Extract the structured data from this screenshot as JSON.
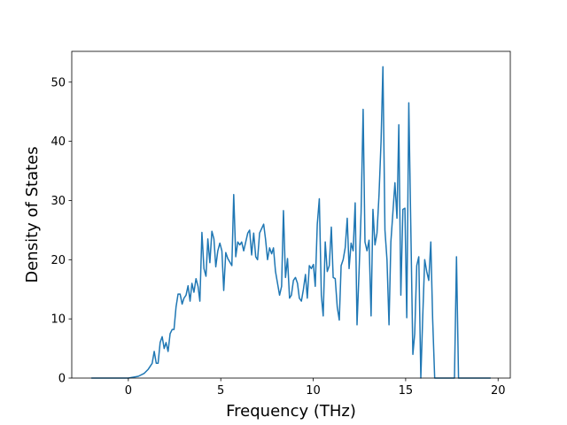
{
  "chart_data": {
    "type": "line",
    "x_label": "Frequency (THz)",
    "y_label": "Density of States",
    "x": [
      -2.0,
      0,
      0.54,
      0.86,
      1.08,
      1.29,
      1.4,
      1.51,
      1.61,
      1.72,
      1.83,
      1.94,
      2.04,
      2.15,
      2.26,
      2.37,
      2.47,
      2.58,
      2.69,
      2.8,
      2.91,
      3.01,
      3.12,
      3.23,
      3.34,
      3.44,
      3.55,
      3.66,
      3.77,
      3.87,
      3.98,
      4.09,
      4.2,
      4.3,
      4.41,
      4.52,
      4.63,
      4.73,
      4.84,
      4.95,
      5.06,
      5.16,
      5.27,
      5.38,
      5.6,
      5.7,
      5.81,
      5.92,
      6.03,
      6.13,
      6.24,
      6.46,
      6.56,
      6.67,
      6.78,
      6.89,
      6.99,
      7.1,
      7.32,
      7.42,
      7.53,
      7.64,
      7.75,
      7.85,
      7.96,
      8.07,
      8.18,
      8.29,
      8.39,
      8.5,
      8.61,
      8.72,
      8.82,
      8.93,
      9.04,
      9.15,
      9.25,
      9.36,
      9.47,
      9.58,
      9.68,
      9.79,
      9.9,
      10.01,
      10.11,
      10.22,
      10.33,
      10.44,
      10.54,
      10.65,
      10.76,
      10.87,
      10.98,
      11.08,
      11.19,
      11.3,
      11.41,
      11.51,
      11.62,
      11.73,
      11.84,
      11.94,
      12.05,
      12.16,
      12.27,
      12.37,
      12.48,
      12.59,
      12.7,
      12.8,
      12.91,
      13.02,
      13.13,
      13.23,
      13.34,
      13.45,
      13.56,
      13.67,
      13.77,
      13.88,
      13.99,
      14.1,
      14.2,
      14.31,
      14.42,
      14.53,
      14.63,
      14.74,
      14.85,
      14.96,
      15.06,
      15.17,
      15.39,
      15.49,
      15.6,
      15.71,
      15.82,
      15.92,
      16.03,
      16.14,
      16.25,
      16.36,
      16.46,
      16.57,
      17.64,
      17.75,
      17.86,
      19.6
    ],
    "series": [
      {
        "color": "#1f77b4",
        "values": [
          0,
          0,
          0.3,
          0.8,
          1.5,
          2.5,
          4.5,
          2.5,
          2.5,
          6,
          7,
          5,
          6,
          4.5,
          7.5,
          8.2,
          8.2,
          12,
          14.2,
          14.2,
          12.5,
          13.5,
          14,
          15.6,
          13,
          16,
          14.5,
          16.8,
          15.5,
          13,
          24.6,
          18.5,
          17.2,
          23.5,
          19.5,
          24.8,
          23.5,
          18.8,
          21.5,
          22.8,
          21.5,
          14.8,
          21.2,
          20.2,
          19,
          31,
          20.5,
          23,
          22.5,
          23,
          21.5,
          24.5,
          25,
          20.8,
          24.5,
          20.5,
          20,
          24.5,
          26,
          23.5,
          20,
          22,
          21,
          22,
          18,
          16,
          14,
          15.5,
          28.3,
          17,
          20.2,
          13.5,
          14,
          16.5,
          17,
          16,
          13.5,
          13,
          15,
          17.5,
          13.5,
          19,
          18.5,
          19.2,
          15.5,
          26,
          30.3,
          14,
          10.5,
          23,
          18,
          19,
          25.5,
          17,
          16.8,
          12,
          9.8,
          19,
          20,
          22,
          27,
          18.5,
          22.8,
          21.5,
          29.6,
          9,
          18,
          28,
          45.4,
          23,
          21.5,
          23.3,
          10.5,
          28.5,
          22.5,
          24.5,
          31,
          40,
          52.6,
          25,
          20,
          9,
          23,
          28,
          33,
          27,
          42.8,
          14,
          28.5,
          28.7,
          10.2,
          46.5,
          4,
          7.5,
          19,
          20.5,
          0,
          10,
          20,
          18,
          16.5,
          23,
          10,
          0,
          0,
          20.5,
          0,
          0
        ]
      }
    ],
    "xlim": [
      -3.06,
      20.66
    ],
    "ylim": [
      0,
      55.2
    ],
    "xticks": [
      0,
      5,
      10,
      15,
      20
    ],
    "yticks": [
      0,
      10,
      20,
      30,
      40,
      50
    ]
  }
}
